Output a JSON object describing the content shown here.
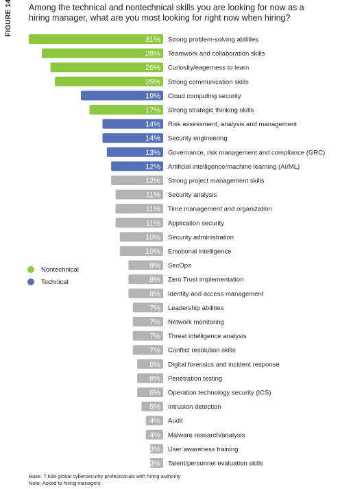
{
  "figure_label": "FIGURE 14",
  "title": "Among the technical and nontechnical skills you are looking for now as a hiring manager, what are you most looking for right now when hiring?",
  "legend": [
    {
      "name": "Nontechnical",
      "color": "#8dc63f"
    },
    {
      "name": "Technical",
      "color": "#5670b7"
    }
  ],
  "footnotes": {
    "base": "Base: 7,698 global cybersecurity professionals with hiring authority",
    "note": "Note: Asked to hiring managers"
  },
  "colors": {
    "nontechnical": "#8dc63f",
    "technical": "#5670b7",
    "other": "#b3b3b3"
  },
  "chart_data": {
    "type": "bar",
    "orientation": "horizontal",
    "value_format": "percent",
    "categories": [
      "Strong problem-solving abilities",
      "Teamwork and collaboration skills",
      "Curiosity/eagerness to learn",
      "Strong communication skills",
      "Cloud computing security",
      "Strong strategic thinking skills",
      "Risk assessment, analysis and management",
      "Security engineering",
      "Governance, risk management and compliance (GRC)",
      "Artificial intelligence/machine learning (AI/ML)",
      "Strong project management skills",
      "Security analysis",
      "Time management and organization",
      "Application security",
      "Security administration",
      "Emotional intelligence",
      "SecOps",
      "Zero Trust implementation",
      "Identity and access management",
      "Leadership abilities",
      "Network monitoring",
      "Threat intelligence analysis",
      "Conflict resolution skills",
      "Digital forensics and incident response",
      "Penetration testing",
      "Operation technology security (ICS)",
      "Intrusion detection",
      "Audit",
      "Malware research/analysis",
      "User awareness training",
      "Talent/personnel evaluation skills"
    ],
    "values": [
      31,
      28,
      26,
      25,
      19,
      17,
      14,
      14,
      13,
      12,
      12,
      11,
      11,
      11,
      10,
      10,
      8,
      8,
      8,
      7,
      7,
      7,
      7,
      6,
      6,
      6,
      5,
      4,
      4,
      3,
      3
    ],
    "group": [
      "nontechnical",
      "nontechnical",
      "nontechnical",
      "nontechnical",
      "technical",
      "nontechnical",
      "technical",
      "technical",
      "technical",
      "technical",
      "other",
      "other",
      "other",
      "other",
      "other",
      "other",
      "other",
      "other",
      "other",
      "other",
      "other",
      "other",
      "other",
      "other",
      "other",
      "other",
      "other",
      "other",
      "other",
      "other",
      "other"
    ],
    "xlim": [
      0,
      31
    ]
  }
}
